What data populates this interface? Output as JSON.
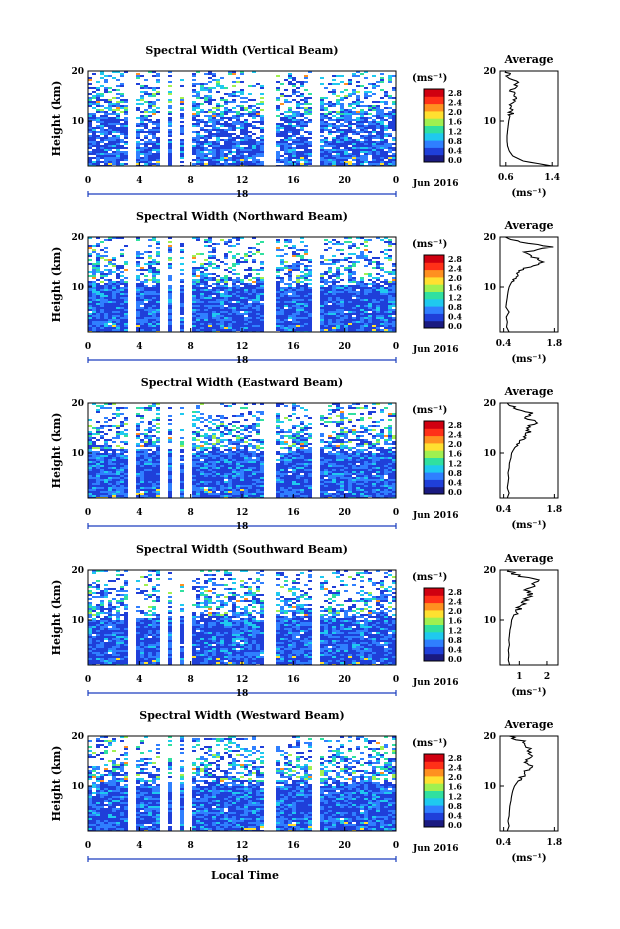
{
  "chart_data": {
    "type": "heatmap",
    "date_label": "Jun 2016",
    "xlabel": "Local Time",
    "ylabel": "Height (km)",
    "x_ticks": [
      "0",
      "4",
      "8",
      "12",
      "16",
      "20",
      "0"
    ],
    "day_label": "18",
    "y_ticks": [
      "10",
      "20"
    ],
    "ylim": [
      1,
      20
    ],
    "colorbar": {
      "unit": "(ms⁻¹)",
      "ticks": [
        "0.0",
        "0.4",
        "0.8",
        "1.2",
        "1.6",
        "2.0",
        "2.4",
        "2.8"
      ],
      "colors": [
        "#1a1a80",
        "#1f3fd9",
        "#2f7fff",
        "#1fc9ef",
        "#30e0a0",
        "#a0f050",
        "#ffe030",
        "#ff9020",
        "#ff3018",
        "#d00010"
      ]
    },
    "data_gaps_local_time": [
      3.2,
      5.8,
      6.6,
      7.5,
      14.0,
      17.6
    ],
    "panels": [
      {
        "title": "Spectral Width (Vertical Beam)",
        "average": {
          "title": "Average",
          "xlabel": "(ms⁻¹)",
          "x_ticks": [
            "0.6",
            "1.4"
          ],
          "xlim": [
            0.5,
            1.5
          ],
          "profile": {
            "height_km": [
              1,
              2,
              3,
              4,
              5,
              6,
              7,
              8,
              9,
              10,
              11,
              12,
              13,
              14,
              15,
              16,
              17,
              18,
              19,
              20
            ],
            "value": [
              1.4,
              0.9,
              0.72,
              0.66,
              0.63,
              0.62,
              0.62,
              0.63,
              0.64,
              0.65,
              0.67,
              0.7,
              0.68,
              0.72,
              0.78,
              0.7,
              0.82,
              0.74,
              0.66,
              0.6
            ]
          }
        }
      },
      {
        "title": "Spectral Width (Northward Beam)",
        "average": {
          "title": "Average",
          "xlabel": "(ms⁻¹)",
          "x_ticks": [
            "0.4",
            "1.8"
          ],
          "xlim": [
            0.3,
            1.9
          ],
          "profile": {
            "height_km": [
              1,
              2,
              3,
              4,
              5,
              6,
              7,
              8,
              9,
              10,
              11,
              12,
              13,
              14,
              15,
              16,
              17,
              18,
              19,
              20
            ],
            "value": [
              0.55,
              0.48,
              0.5,
              0.47,
              0.55,
              0.46,
              0.48,
              0.5,
              0.52,
              0.55,
              0.62,
              0.7,
              0.85,
              1.1,
              1.5,
              1.2,
              1.0,
              1.75,
              0.8,
              0.45
            ]
          }
        }
      },
      {
        "title": "Spectral Width (Eastward Beam)",
        "average": {
          "title": "Average",
          "xlabel": "(ms⁻¹)",
          "x_ticks": [
            "0.4",
            "1.8"
          ],
          "xlim": [
            0.3,
            1.9
          ],
          "profile": {
            "height_km": [
              1,
              2,
              3,
              4,
              5,
              6,
              7,
              8,
              9,
              10,
              11,
              12,
              13,
              14,
              15,
              16,
              17,
              18,
              19,
              20
            ],
            "value": [
              0.5,
              0.55,
              0.5,
              0.52,
              0.54,
              0.52,
              0.55,
              0.56,
              0.6,
              0.62,
              0.7,
              0.8,
              0.95,
              1.1,
              1.0,
              1.3,
              1.05,
              1.2,
              0.7,
              0.5
            ]
          }
        }
      },
      {
        "title": "Spectral Width (Southward Beam)",
        "average": {
          "title": "Average",
          "xlabel": "(ms⁻¹)",
          "x_ticks": [
            "1",
            "2"
          ],
          "xlim": [
            0.3,
            2.4
          ],
          "profile": {
            "height_km": [
              1,
              2,
              3,
              4,
              5,
              6,
              7,
              8,
              9,
              10,
              11,
              12,
              13,
              14,
              15,
              16,
              17,
              18,
              19,
              20
            ],
            "value": [
              0.65,
              0.6,
              0.62,
              0.6,
              0.64,
              0.62,
              0.64,
              0.66,
              0.7,
              0.72,
              0.8,
              0.95,
              1.1,
              1.2,
              1.4,
              1.3,
              1.5,
              1.7,
              0.9,
              0.6
            ]
          }
        }
      },
      {
        "title": "Spectral Width (Westward Beam)",
        "average": {
          "title": "Average",
          "xlabel": "(ms⁻¹)",
          "x_ticks": [
            "0.4",
            "1.8"
          ],
          "xlim": [
            0.3,
            1.9
          ],
          "profile": {
            "height_km": [
              1,
              2,
              3,
              4,
              5,
              6,
              7,
              8,
              9,
              10,
              11,
              12,
              13,
              14,
              15,
              16,
              17,
              18,
              19,
              20
            ],
            "value": [
              0.5,
              0.55,
              0.52,
              0.55,
              0.56,
              0.57,
              0.6,
              0.62,
              0.65,
              0.7,
              0.8,
              0.9,
              1.0,
              1.15,
              1.0,
              1.2,
              1.1,
              1.05,
              0.9,
              0.55
            ]
          }
        }
      }
    ]
  }
}
